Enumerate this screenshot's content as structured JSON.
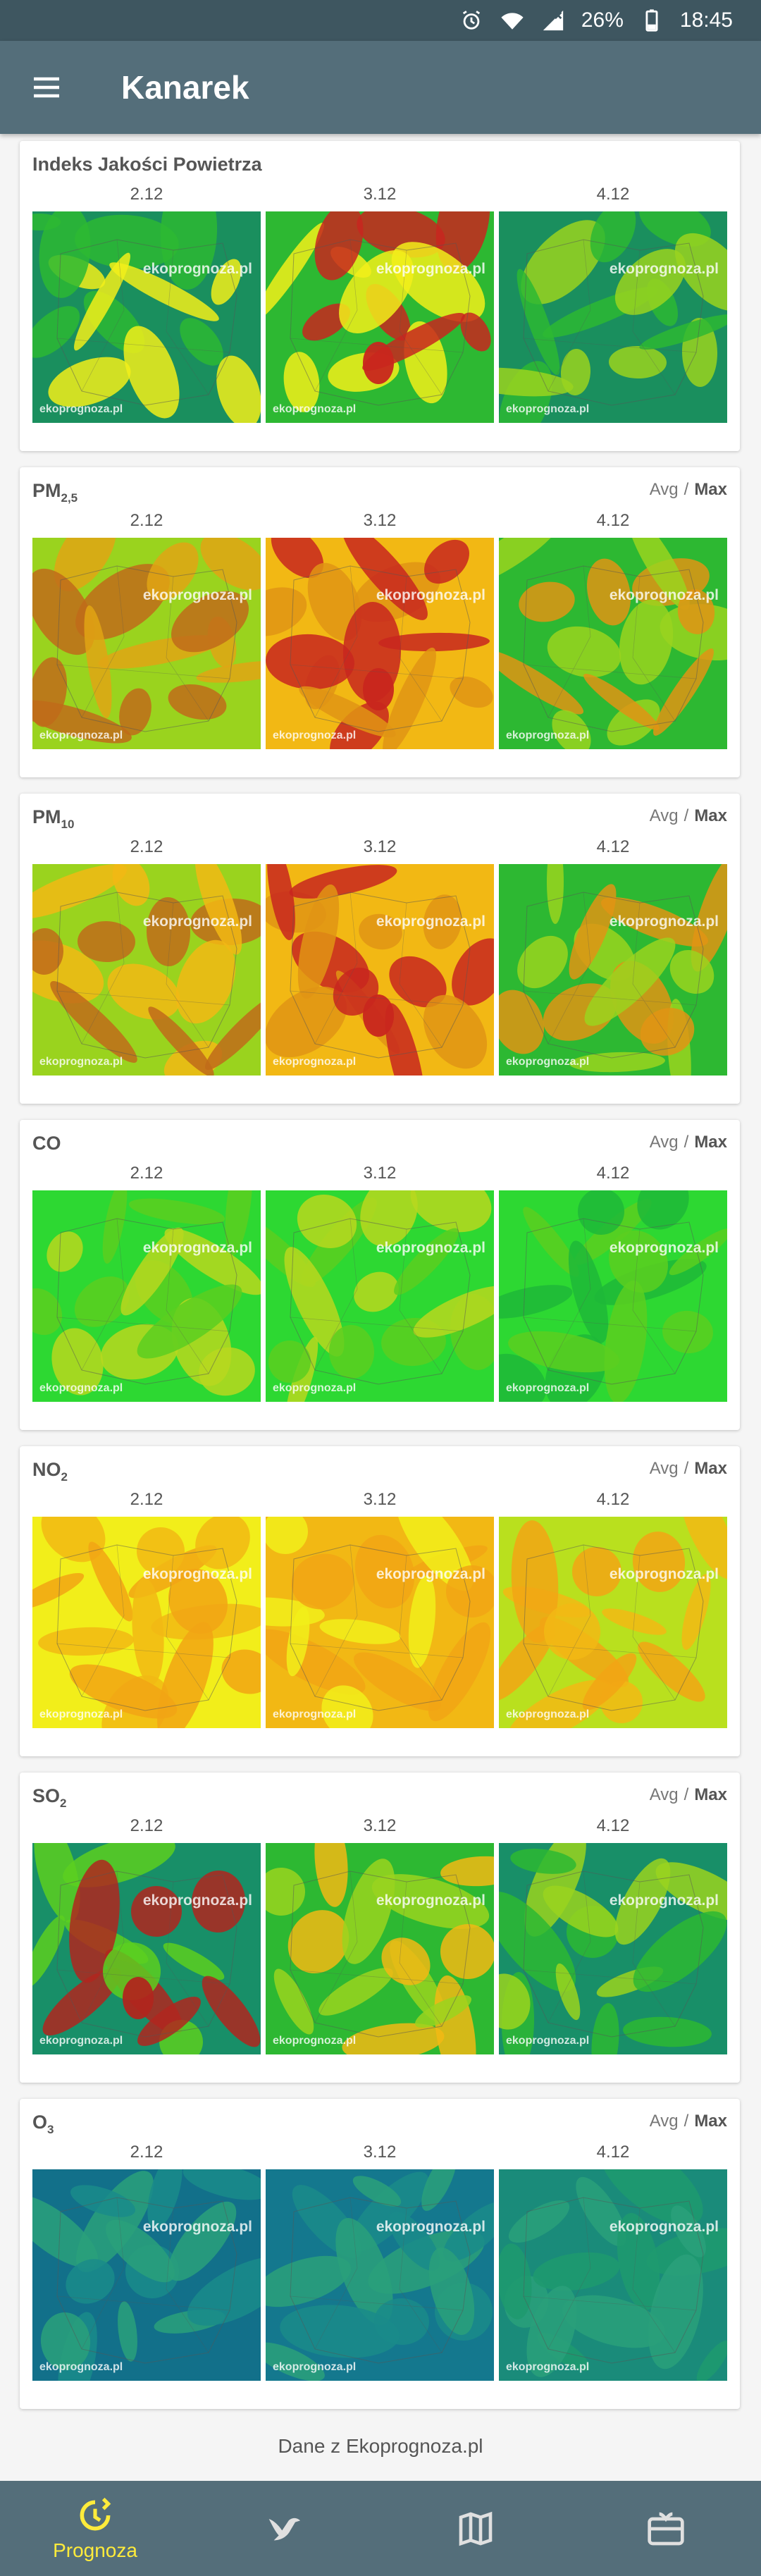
{
  "status_bar": {
    "battery": "26%",
    "time": "18:45",
    "icons": [
      "alarm-icon",
      "wifi-icon",
      "signal-icon",
      "battery-icon"
    ]
  },
  "app_bar": {
    "title": "Kanarek",
    "menu_icon": "hamburger-menu-icon"
  },
  "cards": [
    {
      "id": "aqi",
      "title": "Indeks Jakości Powietrza",
      "days": [
        "2.12",
        "3.12",
        "4.12"
      ],
      "watermark": "ekoprognoza.pl",
      "has_avg_max": false
    },
    {
      "id": "pm25",
      "title": "PM",
      "subscript": "2,5",
      "days": [
        "2.12",
        "3.12",
        "4.12"
      ],
      "avg_label": "Avg",
      "sep": "/",
      "max_label": "Max",
      "watermark": "ekoprognoza.pl",
      "has_avg_max": true
    },
    {
      "id": "pm10",
      "title": "PM",
      "subscript": "10",
      "days": [
        "2.12",
        "3.12",
        "4.12"
      ],
      "avg_label": "Avg",
      "sep": "/",
      "max_label": "Max",
      "watermark": "ekoprognoza.pl",
      "has_avg_max": true
    },
    {
      "id": "co",
      "title": "CO",
      "days": [
        "2.12",
        "3.12",
        "4.12"
      ],
      "avg_label": "Avg",
      "sep": "/",
      "max_label": "Max",
      "watermark": "ekoprognoza.pl",
      "has_avg_max": true
    },
    {
      "id": "no2",
      "title": "NO",
      "subscript": "2",
      "days": [
        "2.12",
        "3.12",
        "4.12"
      ],
      "avg_label": "Avg",
      "sep": "/",
      "max_label": "Max",
      "watermark": "ekoprognoza.pl",
      "has_avg_max": true
    },
    {
      "id": "so2",
      "title": "SO",
      "subscript": "2",
      "days": [
        "2.12",
        "3.12",
        "4.12"
      ],
      "avg_label": "Avg",
      "sep": "/",
      "max_label": "Max",
      "watermark": "ekoprognoza.pl",
      "has_avg_max": true
    },
    {
      "id": "o3",
      "title": "O",
      "subscript": "3",
      "days": [
        "2.12",
        "3.12",
        "4.12"
      ],
      "avg_label": "Avg",
      "sep": "/",
      "max_label": "Max",
      "watermark": "ekoprognoza.pl",
      "has_avg_max": true
    }
  ],
  "maps": {
    "aqi": [
      [
        "#1a8f5e",
        "#2db832",
        "#f2ee1a"
      ],
      [
        "#2db832",
        "#f2ee1a",
        "#c8261e"
      ],
      [
        "#1a8f5e",
        "#2db832",
        "#9ad31e"
      ]
    ],
    "pm25": [
      [
        "#9ad31e",
        "#e0a514",
        "#c06b1a"
      ],
      [
        "#f2b814",
        "#e09414",
        "#c8261e"
      ],
      [
        "#2db832",
        "#9ad31e",
        "#e09414"
      ]
    ],
    "pm10": [
      [
        "#9ad31e",
        "#f2b814",
        "#c06b1a"
      ],
      [
        "#f2b814",
        "#e09414",
        "#c8261e"
      ],
      [
        "#2db832",
        "#9ad31e",
        "#e09414"
      ]
    ],
    "co": [
      [
        "#2dd832",
        "#5ccf20",
        "#b9d81e"
      ],
      [
        "#2dd832",
        "#5ccf20",
        "#b9d81e"
      ],
      [
        "#2dd832",
        "#1fb838",
        "#5ccf20"
      ]
    ],
    "no2": [
      [
        "#f2ee1a",
        "#f2b814",
        "#f2a514"
      ],
      [
        "#f2b814",
        "#f2a514",
        "#f2ee1a"
      ],
      [
        "#b9e01e",
        "#f2b814",
        "#f2a514"
      ]
    ],
    "so2": [
      [
        "#188f68",
        "#5ccf20",
        "#b0261e"
      ],
      [
        "#2db832",
        "#9ad31e",
        "#f2b814"
      ],
      [
        "#188f68",
        "#2db832",
        "#9ad31e"
      ]
    ],
    "o3": [
      [
        "#12708a",
        "#1a8b8a",
        "#2aa07a"
      ],
      [
        "#14788e",
        "#1a8b8a",
        "#2aa07a"
      ],
      [
        "#1a8b7a",
        "#1e9a6e",
        "#2aa07a"
      ]
    ]
  },
  "footer": {
    "source_text": "Dane z Ekoprognoza.pl"
  },
  "bottom_nav": [
    {
      "label": "Prognoza",
      "icon": "forecast-refresh-icon",
      "active": true
    },
    {
      "label": "",
      "icon": "bird-icon",
      "active": false
    },
    {
      "label": "",
      "icon": "map-icon",
      "active": false
    },
    {
      "label": "",
      "icon": "gift-card-icon",
      "active": false
    }
  ],
  "colors": {
    "status_bar": "#3e5660",
    "app_bar": "#546e7a",
    "active_nav": "#ffeb3b"
  }
}
